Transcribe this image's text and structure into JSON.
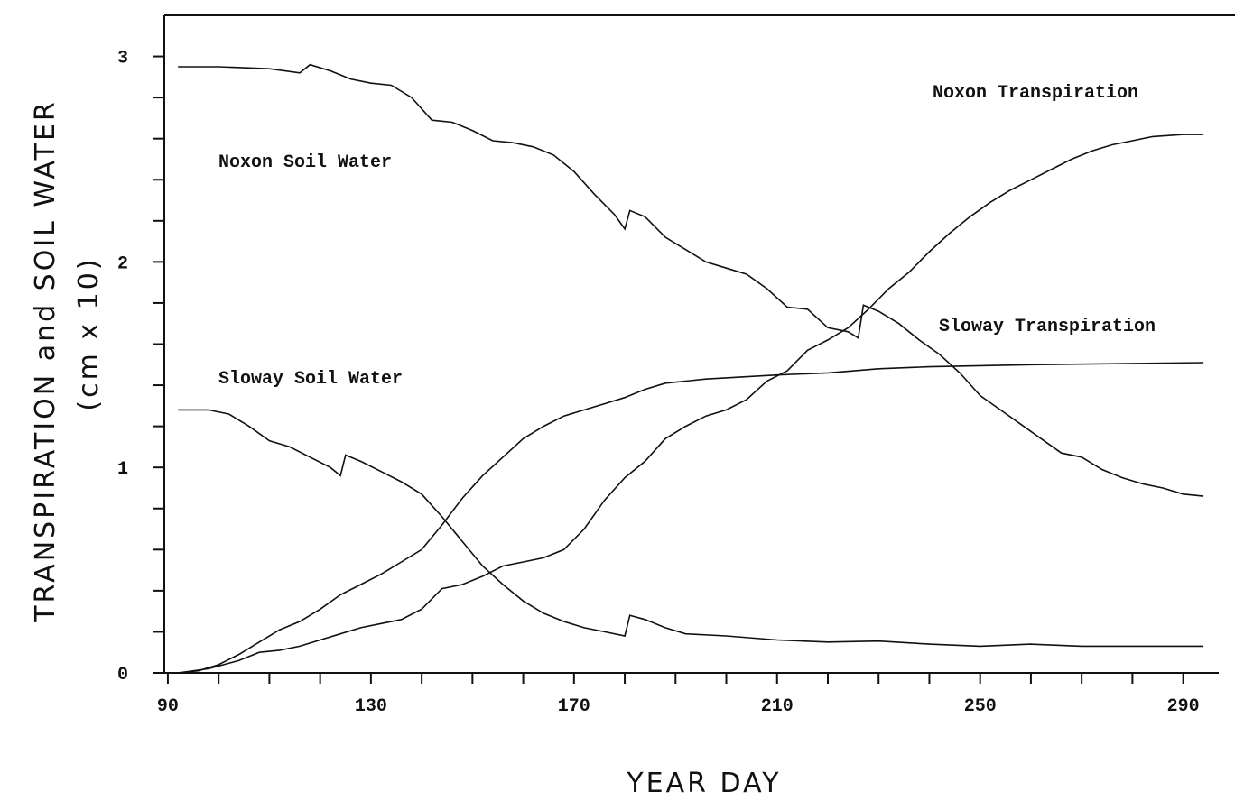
{
  "chart_data": {
    "type": "line",
    "xlabel": "YEAR DAY",
    "ylabel": [
      "TRANSPIRATION and SOIL WATER",
      "(cm x 10)"
    ],
    "xlim": [
      89.3,
      297
    ],
    "xticks": [
      90,
      130,
      170,
      210,
      250,
      290
    ],
    "xticks_minor": [
      100,
      110,
      120,
      140,
      150,
      160,
      180,
      190,
      200,
      220,
      230,
      240,
      260,
      270,
      280
    ],
    "ylim": [
      0,
      3.2
    ],
    "yticks": [
      0,
      1,
      2,
      3
    ],
    "yticks_minor": [
      0.2,
      0.4,
      0.6,
      0.8,
      1.2,
      1.4,
      1.6,
      1.8,
      2.2,
      2.4,
      2.6,
      2.8
    ],
    "grid": false,
    "series": [
      {
        "name": "Noxon Soil Water",
        "color": "#111111",
        "x": [
          92,
          100,
          110,
          116,
          118,
          122,
          126,
          130,
          134,
          138,
          142,
          146,
          150,
          154,
          158,
          162,
          166,
          170,
          174,
          178,
          180,
          181,
          184,
          188,
          192,
          196,
          200,
          204,
          208,
          212,
          216,
          220,
          224,
          226,
          227,
          230,
          234,
          238,
          242,
          246,
          250,
          254,
          258,
          262,
          266,
          270,
          274,
          278,
          282,
          286,
          290,
          294
        ],
        "values": [
          2.95,
          2.95,
          2.94,
          2.92,
          2.96,
          2.93,
          2.89,
          2.87,
          2.86,
          2.8,
          2.69,
          2.68,
          2.64,
          2.59,
          2.58,
          2.56,
          2.52,
          2.44,
          2.33,
          2.23,
          2.16,
          2.25,
          2.22,
          2.12,
          2.06,
          2.0,
          1.97,
          1.94,
          1.87,
          1.78,
          1.77,
          1.68,
          1.66,
          1.63,
          1.79,
          1.76,
          1.7,
          1.62,
          1.55,
          1.46,
          1.35,
          1.28,
          1.21,
          1.14,
          1.07,
          1.05,
          0.99,
          0.95,
          0.92,
          0.9,
          0.87,
          0.86
        ]
      },
      {
        "name": "Sloway Soil Water",
        "color": "#111111",
        "x": [
          92,
          98,
          102,
          106,
          110,
          114,
          118,
          122,
          124,
          125,
          128,
          132,
          136,
          140,
          144,
          148,
          152,
          156,
          160,
          164,
          168,
          172,
          176,
          180,
          181,
          184,
          188,
          192,
          200,
          210,
          220,
          230,
          240,
          250,
          260,
          270,
          294
        ],
        "values": [
          1.28,
          1.28,
          1.26,
          1.2,
          1.13,
          1.1,
          1.05,
          1.0,
          0.96,
          1.06,
          1.03,
          0.98,
          0.93,
          0.87,
          0.76,
          0.64,
          0.52,
          0.43,
          0.35,
          0.29,
          0.25,
          0.22,
          0.2,
          0.18,
          0.28,
          0.26,
          0.22,
          0.19,
          0.18,
          0.16,
          0.15,
          0.155,
          0.14,
          0.13,
          0.14,
          0.13,
          0.13
        ]
      },
      {
        "name": "Noxon Transpiration",
        "color": "#111111",
        "x": [
          92,
          98,
          104,
          108,
          112,
          116,
          120,
          124,
          128,
          132,
          136,
          140,
          144,
          148,
          152,
          156,
          160,
          164,
          168,
          172,
          176,
          180,
          184,
          188,
          192,
          196,
          200,
          204,
          208,
          212,
          216,
          220,
          224,
          228,
          232,
          236,
          240,
          244,
          248,
          252,
          256,
          260,
          264,
          268,
          272,
          276,
          280,
          284,
          290,
          294
        ],
        "values": [
          0,
          0.02,
          0.06,
          0.1,
          0.11,
          0.13,
          0.16,
          0.19,
          0.22,
          0.24,
          0.26,
          0.31,
          0.41,
          0.43,
          0.47,
          0.52,
          0.54,
          0.56,
          0.6,
          0.7,
          0.84,
          0.95,
          1.03,
          1.14,
          1.2,
          1.25,
          1.28,
          1.33,
          1.42,
          1.47,
          1.57,
          1.62,
          1.68,
          1.77,
          1.87,
          1.95,
          2.05,
          2.14,
          2.22,
          2.29,
          2.35,
          2.4,
          2.45,
          2.5,
          2.54,
          2.57,
          2.59,
          2.61,
          2.62,
          2.62
        ]
      },
      {
        "name": "Sloway Transpiration",
        "color": "#111111",
        "x": [
          92,
          96,
          100,
          104,
          108,
          112,
          116,
          120,
          124,
          128,
          132,
          136,
          140,
          144,
          148,
          152,
          156,
          160,
          164,
          168,
          172,
          176,
          180,
          184,
          188,
          196,
          210,
          220,
          230,
          240,
          260,
          294
        ],
        "values": [
          0,
          0.01,
          0.04,
          0.09,
          0.15,
          0.21,
          0.25,
          0.31,
          0.38,
          0.43,
          0.48,
          0.54,
          0.6,
          0.72,
          0.85,
          0.96,
          1.05,
          1.14,
          1.2,
          1.25,
          1.28,
          1.31,
          1.34,
          1.38,
          1.41,
          1.43,
          1.45,
          1.46,
          1.48,
          1.49,
          1.5,
          1.51
        ]
      }
    ]
  }
}
